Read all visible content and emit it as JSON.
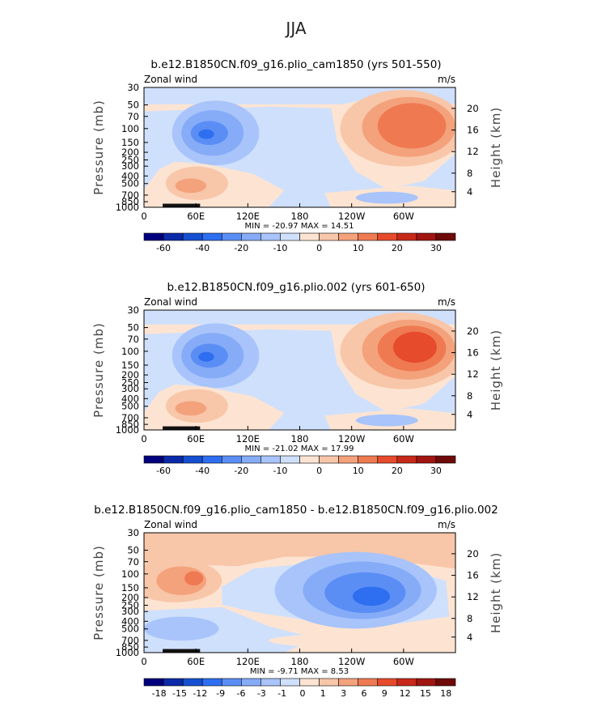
{
  "figure_title": "JJA",
  "palettes": {
    "full": [
      "#00007e",
      "#0a2aa8",
      "#1650d2",
      "#2e6ef0",
      "#5a8ef5",
      "#86acf8",
      "#a8c4fa",
      "#cfe0fc",
      "#fde4d2",
      "#f8c6a9",
      "#f4a27c",
      "#ef7a52",
      "#e64b2c",
      "#c8281a",
      "#a01510",
      "#6e0a08"
    ],
    "diff": [
      "#00007e",
      "#0a2aa8",
      "#1650d2",
      "#2e6ef0",
      "#5a8ef5",
      "#86acf8",
      "#a8c4fa",
      "#cfe0fc",
      "#fde4d2",
      "#f8c6a9",
      "#f4a27c",
      "#ef7a52",
      "#e64b2c",
      "#c8281a",
      "#a01510",
      "#6e0a08"
    ]
  },
  "chart_data": [
    {
      "type": "heatmap",
      "title": "b.e12.B1850CN.f09_g16.plio_cam1850 (yrs 501-550)",
      "left_label": "Zonal wind",
      "right_label": "m/s",
      "ylabel": "Pressure (mb)",
      "y2label": "Height (km)",
      "pressure_ticks": [
        "30",
        "50",
        "70",
        "100",
        "150",
        "200",
        "250",
        "300",
        "400",
        "500",
        "700",
        "850",
        "1000"
      ],
      "height_ticks": [
        "20",
        "16",
        "12",
        "8",
        "4"
      ],
      "x_ticks": [
        "0",
        "60E",
        "120E",
        "180",
        "120W",
        "60W"
      ],
      "min_max": "MIN = -20.97   MAX =  14.51",
      "colorbar_labels": [
        "-60",
        "-40",
        "-20",
        "-10",
        "0",
        "10",
        "20",
        "30"
      ],
      "contour_fields": {
        "jet_core_value": 14.51,
        "easterly_core_value": -20.97
      }
    },
    {
      "type": "heatmap",
      "title": "b.e12.B1850CN.f09_g16.plio.002 (yrs 601-650)",
      "left_label": "Zonal wind",
      "right_label": "m/s",
      "ylabel": "Pressure (mb)",
      "y2label": "Height (km)",
      "pressure_ticks": [
        "30",
        "50",
        "70",
        "100",
        "150",
        "200",
        "250",
        "300",
        "400",
        "500",
        "700",
        "850",
        "1000"
      ],
      "height_ticks": [
        "20",
        "16",
        "12",
        "8",
        "4"
      ],
      "x_ticks": [
        "0",
        "60E",
        "120E",
        "180",
        "120W",
        "60W"
      ],
      "min_max": "MIN = -21.02   MAX =  17.99",
      "colorbar_labels": [
        "-60",
        "-40",
        "-20",
        "-10",
        "0",
        "10",
        "20",
        "30"
      ],
      "contour_fields": {
        "jet_core_value": 17.99,
        "easterly_core_value": -21.02
      }
    },
    {
      "type": "heatmap",
      "title": "b.e12.B1850CN.f09_g16.plio_cam1850 - b.e12.B1850CN.f09_g16.plio.002",
      "left_label": "Zonal wind",
      "right_label": "m/s",
      "ylabel": "Pressure (mb)",
      "y2label": "Height (km)",
      "pressure_ticks": [
        "30",
        "50",
        "70",
        "100",
        "150",
        "200",
        "250",
        "300",
        "400",
        "500",
        "700",
        "850",
        "1000"
      ],
      "height_ticks": [
        "20",
        "16",
        "12",
        "8",
        "4"
      ],
      "x_ticks": [
        "0",
        "60E",
        "120E",
        "180",
        "120W",
        "60W"
      ],
      "min_max": "MIN =  -9.71   MAX =   8.53",
      "colorbar_labels": [
        "-18",
        "-15",
        "-12",
        "-9",
        "-6",
        "-3",
        "-1",
        "0",
        "1",
        "3",
        "6",
        "9",
        "12",
        "15",
        "18"
      ],
      "contour_fields": {
        "min_value": -9.71,
        "max_value": 8.53
      }
    }
  ]
}
